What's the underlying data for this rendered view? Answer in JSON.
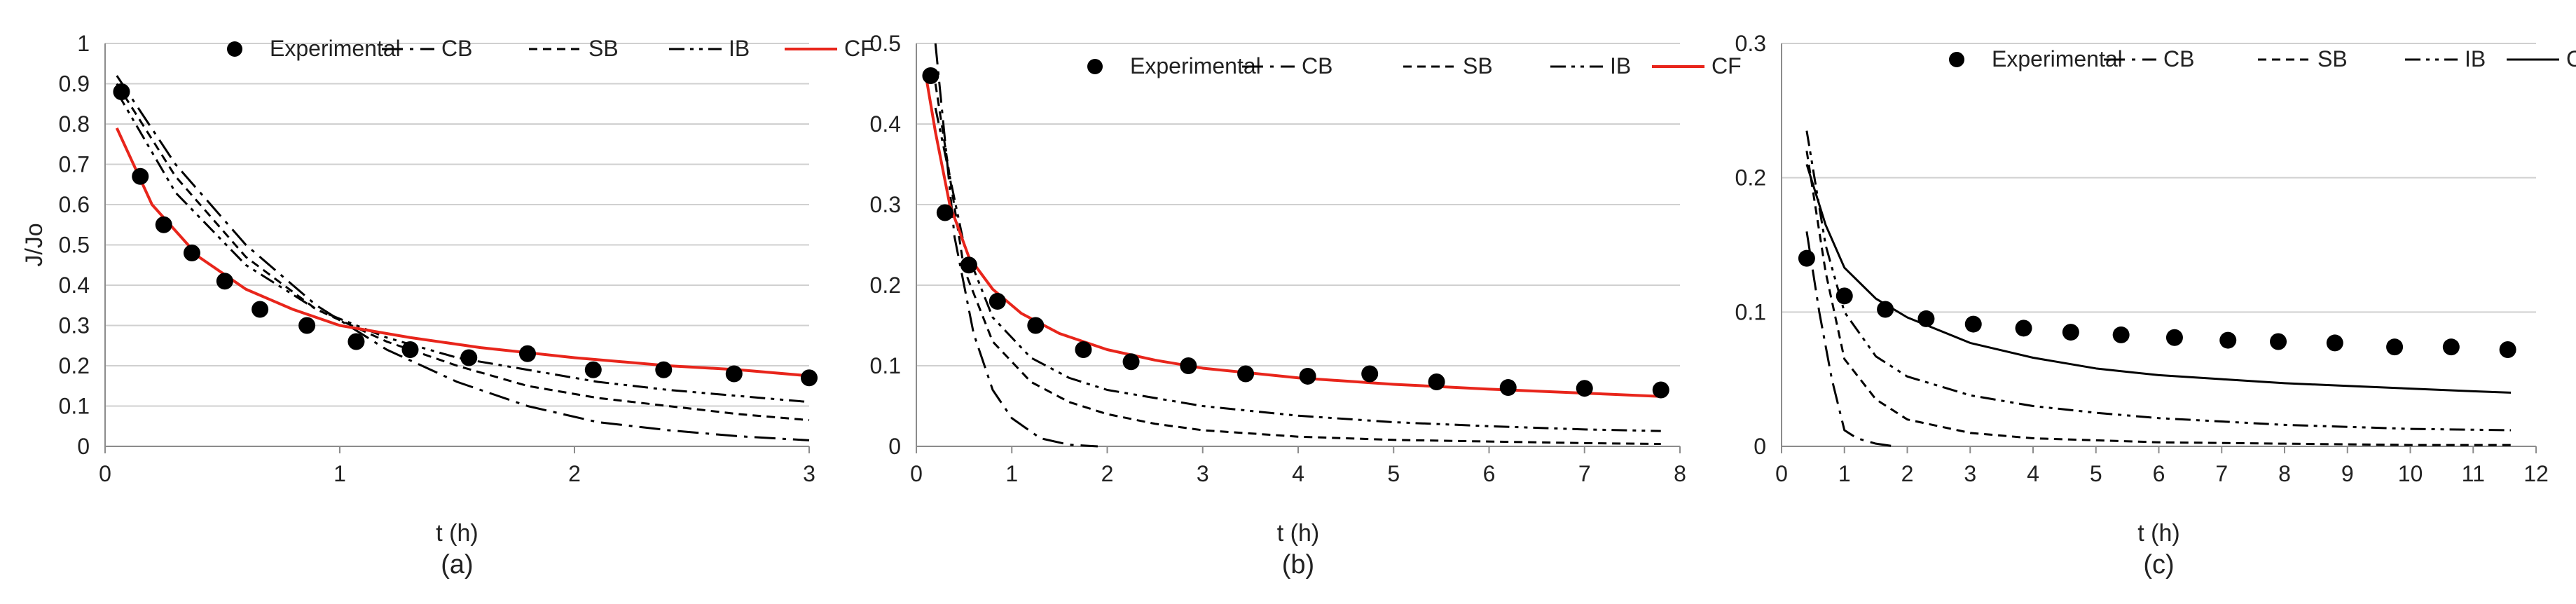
{
  "chart_data": [
    {
      "type": "line",
      "panel_label": "(a)",
      "xlabel": "t (h)",
      "ylabel": "J/Jo",
      "xlim": [
        0,
        3
      ],
      "xticks": [
        0,
        1,
        2,
        3
      ],
      "ylim": [
        0,
        1
      ],
      "yticks": [
        0,
        0.1,
        0.2,
        0.3,
        0.4,
        0.5,
        0.6,
        0.7,
        0.8,
        0.9,
        1
      ],
      "grid": true,
      "legend_position": "top",
      "experimental": {
        "name": "Experimental",
        "x": [
          0.07,
          0.15,
          0.25,
          0.37,
          0.51,
          0.66,
          0.86,
          1.07,
          1.3,
          1.55,
          1.8,
          2.08,
          2.38,
          2.68,
          3.0
        ],
        "y": [
          0.88,
          0.67,
          0.55,
          0.48,
          0.41,
          0.34,
          0.3,
          0.26,
          0.24,
          0.22,
          0.23,
          0.19,
          0.19,
          0.18,
          0.17
        ]
      },
      "series": [
        {
          "name": "CB",
          "dash": "long-dash-dot",
          "color": "#000000",
          "x": [
            0.05,
            0.3,
            0.6,
            0.9,
            1.2,
            1.5,
            1.8,
            2.1,
            2.4,
            2.7,
            3.0
          ],
          "y": [
            0.92,
            0.7,
            0.5,
            0.35,
            0.24,
            0.16,
            0.1,
            0.06,
            0.04,
            0.025,
            0.015
          ]
        },
        {
          "name": "SB",
          "dash": "short-dash",
          "color": "#000000",
          "x": [
            0.05,
            0.3,
            0.6,
            0.9,
            1.2,
            1.5,
            1.8,
            2.1,
            2.4,
            2.7,
            3.0
          ],
          "y": [
            0.9,
            0.67,
            0.47,
            0.34,
            0.26,
            0.2,
            0.15,
            0.12,
            0.1,
            0.08,
            0.065
          ]
        },
        {
          "name": "IB",
          "dash": "dash-dot-dot",
          "color": "#000000",
          "x": [
            0.05,
            0.3,
            0.6,
            0.9,
            1.2,
            1.5,
            1.8,
            2.1,
            2.4,
            2.7,
            3.0
          ],
          "y": [
            0.88,
            0.63,
            0.45,
            0.34,
            0.27,
            0.22,
            0.19,
            0.16,
            0.14,
            0.125,
            0.11
          ]
        },
        {
          "name": "CF",
          "dash": "solid",
          "color": "#e8251b",
          "x": [
            0.05,
            0.2,
            0.4,
            0.6,
            0.8,
            1.0,
            1.3,
            1.6,
            2.0,
            2.4,
            2.7,
            3.0
          ],
          "y": [
            0.79,
            0.6,
            0.47,
            0.39,
            0.34,
            0.3,
            0.27,
            0.245,
            0.22,
            0.2,
            0.19,
            0.175
          ]
        }
      ]
    },
    {
      "type": "line",
      "panel_label": "(b)",
      "xlabel": "t (h)",
      "ylabel": "",
      "xlim": [
        0,
        8
      ],
      "xticks": [
        0,
        1,
        2,
        3,
        4,
        5,
        6,
        7,
        8
      ],
      "ylim": [
        0,
        0.5
      ],
      "yticks": [
        0,
        0.1,
        0.2,
        0.3,
        0.4,
        0.5
      ],
      "grid": true,
      "legend_position": "top",
      "experimental": {
        "name": "Experimental",
        "x": [
          0.15,
          0.3,
          0.55,
          0.85,
          1.25,
          1.75,
          2.25,
          2.85,
          3.45,
          4.1,
          4.75,
          5.45,
          6.2,
          7.0,
          7.8
        ],
        "y": [
          0.46,
          0.29,
          0.225,
          0.18,
          0.15,
          0.12,
          0.105,
          0.1,
          0.09,
          0.087,
          0.09,
          0.08,
          0.073,
          0.072,
          0.07
        ]
      },
      "series": [
        {
          "name": "CB",
          "dash": "long-dash-dot",
          "color": "#000000",
          "x": [
            0.2,
            0.4,
            0.6,
            0.8,
            1.0,
            1.3,
            1.6,
            1.9
          ],
          "y": [
            0.5,
            0.26,
            0.14,
            0.07,
            0.035,
            0.01,
            0.002,
            0.0
          ]
        },
        {
          "name": "SB",
          "dash": "short-dash",
          "color": "#000000",
          "x": [
            0.2,
            0.5,
            0.8,
            1.2,
            1.6,
            2.0,
            2.5,
            3.0,
            4.0,
            5.0,
            6.0,
            7.0,
            7.8
          ],
          "y": [
            0.45,
            0.22,
            0.13,
            0.08,
            0.055,
            0.04,
            0.028,
            0.02,
            0.012,
            0.008,
            0.006,
            0.004,
            0.003
          ]
        },
        {
          "name": "IB",
          "dash": "dash-dot-dot",
          "color": "#000000",
          "x": [
            0.2,
            0.5,
            0.8,
            1.2,
            1.6,
            2.0,
            3.0,
            4.0,
            5.0,
            6.0,
            7.0,
            7.8
          ],
          "y": [
            0.42,
            0.25,
            0.16,
            0.11,
            0.085,
            0.07,
            0.05,
            0.038,
            0.03,
            0.025,
            0.021,
            0.019
          ]
        },
        {
          "name": "CF",
          "dash": "solid",
          "color": "#e8251b",
          "x": [
            0.1,
            0.2,
            0.35,
            0.55,
            0.8,
            1.1,
            1.5,
            2.0,
            2.5,
            3.0,
            4.0,
            5.0,
            6.0,
            7.0,
            7.8
          ],
          "y": [
            0.46,
            0.39,
            0.3,
            0.235,
            0.195,
            0.165,
            0.14,
            0.12,
            0.107,
            0.097,
            0.085,
            0.077,
            0.071,
            0.066,
            0.062
          ]
        }
      ]
    },
    {
      "type": "line",
      "panel_label": "(c)",
      "xlabel": "t (h)",
      "ylabel": "",
      "xlim": [
        0,
        12
      ],
      "xticks": [
        0,
        1,
        2,
        3,
        4,
        5,
        6,
        7,
        8,
        9,
        10,
        11,
        12
      ],
      "ylim": [
        0,
        0.3
      ],
      "yticks": [
        0,
        0.1,
        0.2,
        0.3
      ],
      "grid": true,
      "legend_position": "top",
      "experimental": {
        "name": "Experimental",
        "x": [
          0.4,
          1.0,
          1.65,
          2.3,
          3.05,
          3.85,
          4.6,
          5.4,
          6.25,
          7.1,
          7.9,
          8.8,
          9.75,
          10.65,
          11.55
        ],
        "y": [
          0.14,
          0.112,
          0.102,
          0.095,
          0.091,
          0.088,
          0.085,
          0.083,
          0.081,
          0.079,
          0.078,
          0.077,
          0.074,
          0.074,
          0.072
        ]
      },
      "series": [
        {
          "name": "CB",
          "dash": "long-dash-dot",
          "color": "#000000",
          "x": [
            0.4,
            0.6,
            0.8,
            1.0,
            1.2,
            1.5,
            1.8
          ],
          "y": [
            0.16,
            0.1,
            0.05,
            0.012,
            0.006,
            0.002,
            0.0
          ]
        },
        {
          "name": "SB",
          "dash": "short-dash",
          "color": "#000000",
          "x": [
            0.4,
            0.7,
            1.0,
            1.5,
            2.0,
            3.0,
            4.0,
            6.0,
            8.0,
            10.0,
            11.6
          ],
          "y": [
            0.22,
            0.13,
            0.065,
            0.035,
            0.02,
            0.01,
            0.006,
            0.003,
            0.002,
            0.001,
            0.001
          ]
        },
        {
          "name": "IB",
          "dash": "dash-dot-dot",
          "color": "#000000",
          "x": [
            0.4,
            0.7,
            1.0,
            1.5,
            2.0,
            3.0,
            4.0,
            5.0,
            6.0,
            8.0,
            10.0,
            11.6
          ],
          "y": [
            0.235,
            0.15,
            0.1,
            0.067,
            0.052,
            0.038,
            0.03,
            0.025,
            0.021,
            0.016,
            0.013,
            0.012
          ]
        },
        {
          "name": "CF",
          "dash": "solid",
          "color": "#000000",
          "x": [
            0.4,
            0.7,
            1.0,
            1.5,
            2.0,
            3.0,
            4.0,
            5.0,
            6.0,
            7.0,
            8.0,
            9.0,
            10.0,
            11.0,
            11.6
          ],
          "y": [
            0.21,
            0.165,
            0.133,
            0.11,
            0.096,
            0.077,
            0.066,
            0.058,
            0.053,
            0.05,
            0.047,
            0.045,
            0.043,
            0.041,
            0.04
          ]
        }
      ]
    }
  ]
}
